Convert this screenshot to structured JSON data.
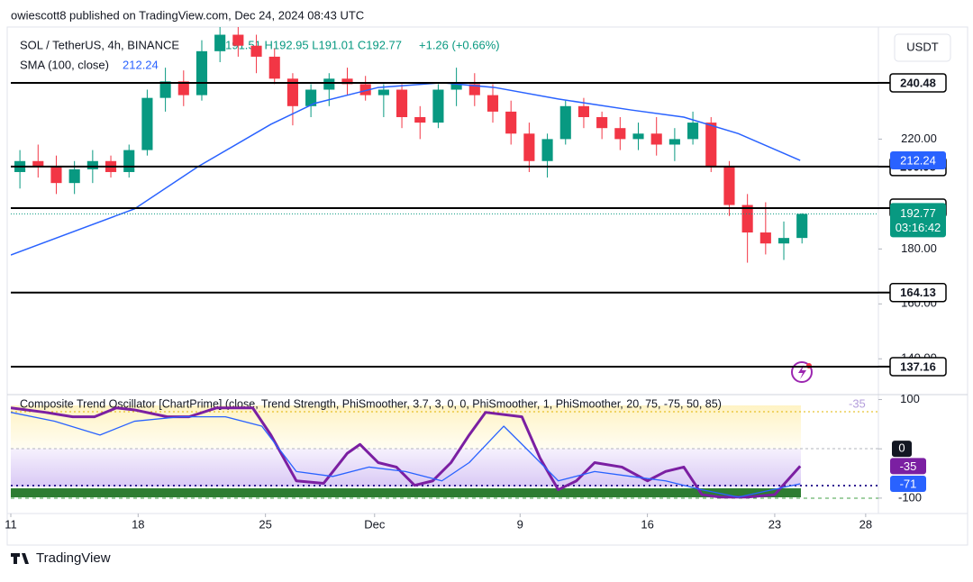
{
  "header": {
    "publisher": "owiescott8 published on TradingView.com, Dec 24, 2024 08:43 UTC",
    "brand": "TradingView"
  },
  "chart_data": [
    {
      "type": "candlestick",
      "title": "SOL / TetherUS, 4h, BINANCE",
      "legend_ohlc": "O191.51 H192.95 L191.01 C192.77",
      "legend_change": "+1.26 (+0.66%)",
      "currency": "USDT",
      "countdown": "03:16:42",
      "up_color": "#089981",
      "down_color": "#f23645",
      "x": [
        0,
        1,
        2,
        3,
        4,
        5,
        6,
        7,
        8,
        9,
        10,
        11,
        12,
        13,
        14,
        15,
        16,
        17,
        18,
        19,
        20,
        21,
        22,
        23,
        24,
        25,
        26,
        27,
        28,
        29,
        30,
        31,
        32,
        33,
        34,
        35,
        36,
        37,
        38,
        39,
        40,
        41,
        42,
        43
      ],
      "open": [
        208,
        212,
        210,
        204,
        209,
        212,
        208,
        216,
        235,
        241,
        236,
        252,
        258,
        254,
        250,
        242,
        232,
        238,
        242,
        240,
        236,
        238,
        228,
        226,
        238,
        240,
        236,
        230,
        222,
        212,
        220,
        232,
        228,
        224,
        220,
        222,
        218,
        220,
        226,
        210,
        196,
        186,
        182,
        184
      ],
      "high": [
        216,
        218,
        214,
        212,
        216,
        214,
        218,
        238,
        246,
        245,
        256,
        262,
        262,
        258,
        253,
        244,
        240,
        244,
        246,
        243,
        240,
        240,
        232,
        240,
        246,
        244,
        240,
        234,
        226,
        222,
        234,
        235,
        230,
        228,
        226,
        228,
        224,
        230,
        228,
        212,
        200,
        197,
        190,
        193
      ],
      "low": [
        202,
        206,
        200,
        200,
        204,
        206,
        206,
        214,
        230,
        232,
        234,
        248,
        250,
        244,
        240,
        225,
        228,
        232,
        236,
        234,
        228,
        224,
        220,
        224,
        232,
        232,
        226,
        218,
        208,
        206,
        218,
        224,
        220,
        216,
        216,
        214,
        212,
        218,
        208,
        192,
        175,
        178,
        176,
        182
      ],
      "close": [
        212,
        210,
        204,
        209,
        212,
        208,
        216,
        235,
        241,
        236,
        252,
        258,
        254,
        250,
        242,
        232,
        238,
        242,
        240,
        236,
        238,
        228,
        226,
        238,
        240,
        236,
        230,
        222,
        212,
        220,
        232,
        228,
        224,
        220,
        222,
        218,
        220,
        226,
        210,
        196,
        186,
        182,
        184,
        192.77
      ],
      "sma": {
        "name": "SMA (100, close)",
        "color": "#2962ff",
        "x": [
          0,
          6.8,
          10.3,
          14.3,
          16.7,
          20.2,
          23.7,
          26.6,
          30.1,
          34.1,
          37.0,
          40.0,
          43.4
        ],
        "values": [
          177.8,
          194.6,
          210,
          225.4,
          233,
          238.8,
          240.5,
          238.8,
          234.6,
          230.6,
          228,
          222,
          212.24
        ]
      },
      "levels": [
        240.48,
        209.98,
        194.88,
        164.13,
        137.16
      ],
      "xlim": [
        0,
        47.7
      ],
      "xticks": [
        {
          "value": 0,
          "label": "11"
        },
        {
          "value": 7,
          "label": "18"
        },
        {
          "value": 14,
          "label": "25"
        },
        {
          "value": 20,
          "label": "Dec"
        },
        {
          "value": 28,
          "label": "9"
        },
        {
          "value": 35,
          "label": "16"
        },
        {
          "value": 42,
          "label": "23"
        },
        {
          "value": 47,
          "label": "28"
        }
      ],
      "ylim": [
        127.3,
        260.8
      ],
      "yticks": [
        {
          "value": 140,
          "label": "140.00"
        },
        {
          "value": 160,
          "label": "160.00"
        },
        {
          "value": 180,
          "label": "180.00"
        },
        {
          "value": 220,
          "label": "220.00"
        }
      ]
    },
    {
      "type": "line",
      "title": "Composite Trend Oscillator [ChartPrime] (close, Trend Strength, PhiSmoother, 3.7, 3, 0, 0, PhiSmoother, 1, PhiSmoother, 20, 75, -75, 50, 85)",
      "series": [
        {
          "color": "#7b1fa2",
          "x": [
            0,
            1.9,
            3.4,
            4.6,
            5.8,
            6.8,
            8.6,
            9.8,
            11.3,
            13.3,
            14.3,
            15.7,
            17.2,
            18.5,
            19.2,
            20.2,
            21.2,
            22.2,
            23.2,
            24.2,
            25.2,
            26.1,
            28.1,
            29.1,
            30.1,
            31.1,
            32.1,
            33.6,
            35.0,
            36.0,
            37.0,
            38.0,
            39.0,
            40.5,
            42.0,
            43.4
          ],
          "values": [
            83,
            74,
            65,
            65,
            83,
            79,
            65,
            65,
            83,
            83,
            28,
            -65,
            -70,
            -9,
            9,
            -28,
            -37,
            -74,
            -65,
            -28,
            28,
            74,
            65,
            -19,
            -83,
            -65,
            -28,
            -37,
            -65,
            -46,
            -37,
            -93,
            -98,
            -98,
            -93,
            -35
          ]
        },
        {
          "color": "#2962ff",
          "x": [
            0,
            2.4,
            4.9,
            6.8,
            9.3,
            11.8,
            13.8,
            15.7,
            17.7,
            19.7,
            21.7,
            23.7,
            25.2,
            27.1,
            28.6,
            30.1,
            32.1,
            34.1,
            36.0,
            38.0,
            40.0,
            43.4
          ],
          "values": [
            74,
            56,
            28,
            56,
            65,
            65,
            46,
            -46,
            -56,
            -37,
            -46,
            -65,
            -28,
            46,
            -9,
            -65,
            -46,
            -56,
            -65,
            -83,
            -98,
            -71
          ]
        }
      ],
      "xlim": [
        0,
        47.7
      ],
      "ylim": [
        -113,
        110
      ],
      "yticks": [
        100,
        0,
        -100
      ]
    }
  ]
}
